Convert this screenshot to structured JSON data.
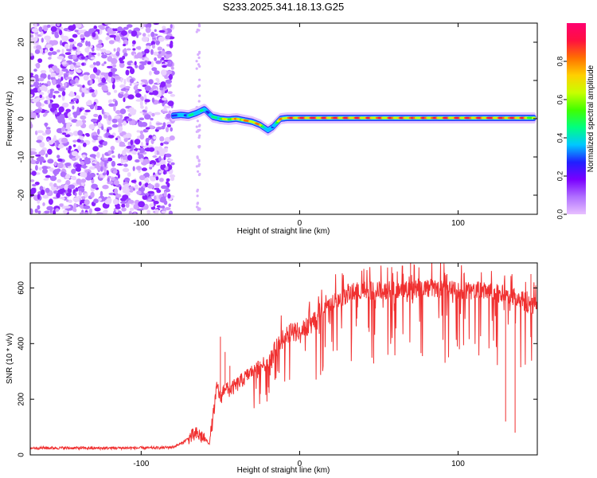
{
  "title": "S233.2025.341.18.13.G25",
  "chart_data": [
    {
      "type": "heatmap",
      "xlabel": "Height of straight line (km)",
      "ylabel": "Frequency (Hz)",
      "xlim": [
        -170,
        150
      ],
      "ylim": [
        -25,
        25
      ],
      "xticks": [
        -100,
        0,
        100
      ],
      "yticks": [
        -20,
        -10,
        0,
        10,
        20
      ],
      "colorbar": {
        "label": "Normalized spectral amplitude",
        "range": [
          0,
          1
        ],
        "ticks": [
          0.0,
          0.2,
          0.4,
          0.6,
          0.8
        ],
        "tick_labels": [
          "0.0",
          "0.2",
          "0.4",
          "0.6",
          "0.8"
        ],
        "colormap": [
          "#e8c0ff",
          "#b070ff",
          "#7a00ff",
          "#2020ff",
          "#00c8ff",
          "#00ff80",
          "#40ff00",
          "#c8ff00",
          "#ffd000",
          "#ff7000",
          "#ff1040",
          "#ff0070"
        ]
      },
      "ridge": {
        "x": [
          -80,
          -75,
          -70,
          -65,
          -60,
          -55,
          -50,
          -45,
          -40,
          -35,
          -30,
          -25,
          -20,
          -17,
          -12,
          -8,
          0,
          20,
          50,
          80,
          110,
          140,
          148
        ],
        "y": [
          0.8,
          1.0,
          0.8,
          1.5,
          2.5,
          0.5,
          0.0,
          -0.2,
          0.0,
          -0.4,
          -0.8,
          -1.6,
          -3.0,
          -2.2,
          0.0,
          0.2,
          0.2,
          0.2,
          0.2,
          0.2,
          0.2,
          0.2,
          0.2
        ],
        "amplitude": [
          0.35,
          0.4,
          0.45,
          0.5,
          0.4,
          0.45,
          0.6,
          0.75,
          0.8,
          0.85,
          0.85,
          0.8,
          0.4,
          0.4,
          0.85,
          0.9,
          0.95,
          0.95,
          0.9,
          0.9,
          0.95,
          0.95,
          0.6
        ]
      },
      "noise_region": [
        -170,
        -80
      ]
    },
    {
      "type": "line",
      "xlabel": "Height of straight line (km)",
      "ylabel": "SNR (10 * v/v)",
      "xlim": [
        -170,
        150
      ],
      "ylim": [
        0,
        690
      ],
      "xticks": [
        -100,
        0,
        100
      ],
      "yticks": [
        0,
        200,
        400,
        600
      ],
      "color": "#f03030",
      "series": [
        {
          "name": "SNR",
          "x": [
            -170,
            -150,
            -130,
            -110,
            -90,
            -80,
            -75,
            -70,
            -65,
            -60,
            -57,
            -55,
            -52,
            -50,
            -47,
            -45,
            -40,
            -35,
            -30,
            -25,
            -20,
            -15,
            -10,
            -5,
            0,
            5,
            10,
            15,
            20,
            25,
            30,
            40,
            50,
            60,
            70,
            80,
            90,
            100,
            110,
            120,
            130,
            140,
            145,
            150
          ],
          "y": [
            25,
            25,
            24,
            25,
            25,
            28,
            40,
            60,
            75,
            60,
            40,
            120,
            250,
            200,
            250,
            230,
            250,
            275,
            300,
            320,
            330,
            380,
            420,
            440,
            450,
            460,
            480,
            520,
            540,
            560,
            580,
            590,
            590,
            595,
            600,
            600,
            595,
            590,
            590,
            585,
            575,
            560,
            540,
            530
          ]
        }
      ]
    }
  ]
}
